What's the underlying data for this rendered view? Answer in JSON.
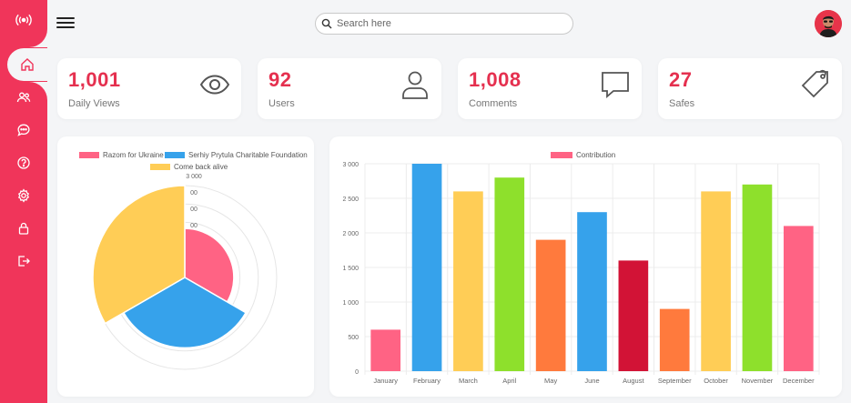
{
  "search": {
    "placeholder": "Search here"
  },
  "sidebar": {
    "items": [
      {
        "name": "home",
        "active": true
      },
      {
        "name": "users",
        "active": false
      },
      {
        "name": "messages",
        "active": false
      },
      {
        "name": "help",
        "active": false
      },
      {
        "name": "settings",
        "active": false
      },
      {
        "name": "lock",
        "active": false
      },
      {
        "name": "logout",
        "active": false
      }
    ]
  },
  "cards": [
    {
      "value": "1,001",
      "label": "Daily Views",
      "icon": "eye-icon"
    },
    {
      "value": "92",
      "label": "Users",
      "icon": "user-icon"
    },
    {
      "value": "1,008",
      "label": "Comments",
      "icon": "comment-icon"
    },
    {
      "value": "27",
      "label": "Safes",
      "icon": "tag-icon"
    }
  ],
  "colors": {
    "accent": "#f0355a",
    "pink": "#ff6384",
    "blue": "#36a2eb",
    "yellow": "#ffcd56",
    "green": "#8ee02c",
    "orange": "#ff7a3d",
    "crimson": "#d21336"
  },
  "chart_data": [
    {
      "type": "polarArea",
      "legend": [
        "Razom for Ukraine",
        "Serhiy Prytula Charitable Foundation",
        "Come back alive"
      ],
      "colors": [
        "#ff6384",
        "#36a2eb",
        "#ffcd56"
      ],
      "values": [
        1600,
        2300,
        3000
      ],
      "rmax": 3000,
      "visible_tick_labels": [
        "3 000",
        "00",
        "00",
        "00"
      ]
    },
    {
      "type": "bar",
      "legend": [
        "Contribution"
      ],
      "categories": [
        "January",
        "February",
        "March",
        "April",
        "May",
        "June",
        "August",
        "September",
        "October",
        "November",
        "December"
      ],
      "values": [
        600,
        3000,
        2600,
        2800,
        1900,
        2300,
        1600,
        900,
        2600,
        2700,
        2100
      ],
      "colors": [
        "#ff6384",
        "#36a2eb",
        "#ffcd56",
        "#8ee02c",
        "#ff7a3d",
        "#36a2eb",
        "#d21336",
        "#ff7a3d",
        "#ffcd56",
        "#8ee02c",
        "#ff6384"
      ],
      "ylim": [
        0,
        3000
      ],
      "yticks": [
        "0",
        "500",
        "1 000",
        "1 500",
        "2 000",
        "2 500",
        "3 000"
      ]
    }
  ]
}
